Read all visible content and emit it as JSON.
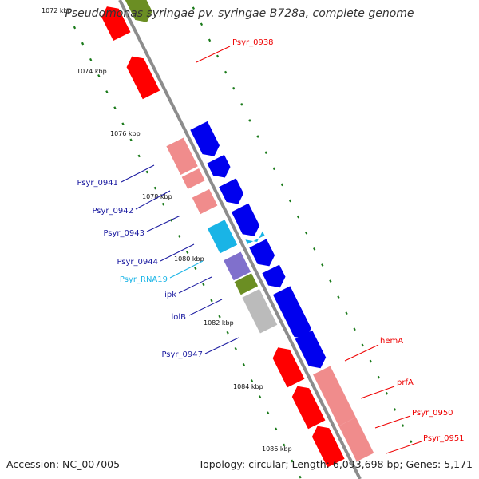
{
  "title": "Pseudomonas syringae pv. syringae B728a, complete genome",
  "footer": {
    "accession": "Accession: NC_007005",
    "summary": "Topology: circular; Length: 6,093,698 bp; Genes: 5,171"
  },
  "colors": {
    "backbone": "#8c8c8c",
    "tick": "#1a7a1a",
    "cds_reverse": "#ff0000",
    "cds_reverse_light": "#f08c8c",
    "cds_forward": "#0000ee",
    "rna": "#19b4e6",
    "purple": "#8070cc",
    "olive": "#6b8e23",
    "grey": "#bbbbbb",
    "label_red": "#ee0000",
    "label_blue": "#1a1aa0",
    "label_cyan": "#19b4e6"
  },
  "ticks": [
    {
      "label": "1072 kbp"
    },
    {
      "label": "1074 kbp"
    },
    {
      "label": "1076 kbp"
    },
    {
      "label": "1078 kbp"
    },
    {
      "label": "1080 kbp"
    },
    {
      "label": "1082 kbp"
    },
    {
      "label": "1084 kbp"
    },
    {
      "label": "1086 kbp"
    }
  ],
  "gene_labels": [
    {
      "text": "Psyr_0938",
      "color": "label_red"
    },
    {
      "text": "Psyr_0941",
      "color": "label_blue"
    },
    {
      "text": "Psyr_0942",
      "color": "label_blue"
    },
    {
      "text": "Psyr_0943",
      "color": "label_blue"
    },
    {
      "text": "Psyr_0944",
      "color": "label_blue"
    },
    {
      "text": "Psyr_RNA19",
      "color": "label_cyan"
    },
    {
      "text": "ipk",
      "color": "label_blue"
    },
    {
      "text": "lolB",
      "color": "label_blue"
    },
    {
      "text": "Psyr_0947",
      "color": "label_blue"
    },
    {
      "text": "hemA",
      "color": "label_red"
    },
    {
      "text": "prfA",
      "color": "label_red"
    },
    {
      "text": "Psyr_0950",
      "color": "label_red"
    },
    {
      "text": "Psyr_0951",
      "color": "label_red"
    }
  ]
}
